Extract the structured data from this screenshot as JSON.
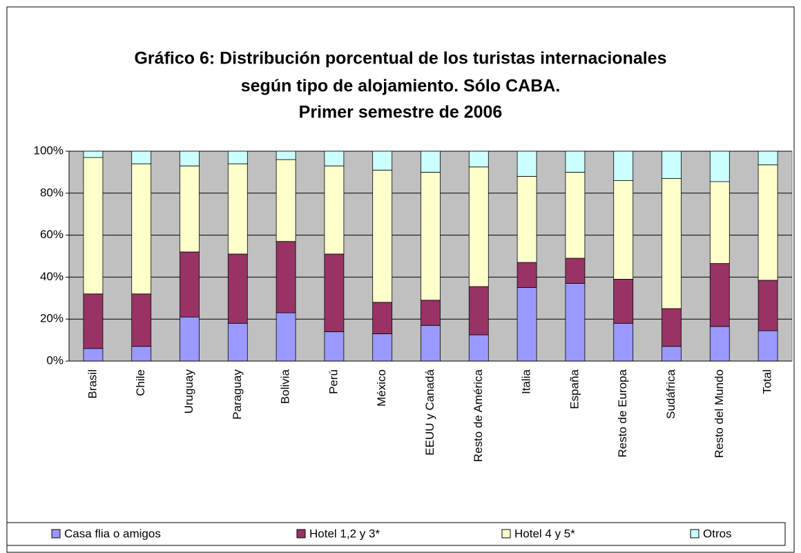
{
  "chart_data": {
    "type": "stacked_bar",
    "title": [
      "Gráfico 6: Distribución porcentual de los turistas internacionales",
      "según tipo de alojamiento. Sólo CABA.",
      "Primer semestre de 2006"
    ],
    "categories": [
      "Brasil",
      "Chile",
      "Uruguay",
      "Paraguay",
      "Bolivia",
      "Perú",
      "México",
      "EEUU y Canadá",
      "Resto de América",
      "Italia",
      "España",
      "Resto de Europa",
      "Sudáfrica",
      "Resto del Mundo",
      "Total"
    ],
    "series": [
      {
        "name": "Casa flia o amigos",
        "color": "#9999ff",
        "values": [
          6,
          7,
          21,
          18,
          23,
          14,
          13,
          17,
          12.5,
          35,
          37,
          18,
          7,
          16.5,
          14.5
        ]
      },
      {
        "name": "Hotel 1,2 y 3*",
        "color": "#993366",
        "values": [
          26,
          25,
          31,
          33,
          34,
          37,
          15,
          12,
          23,
          12,
          12,
          21,
          18,
          30,
          24
        ]
      },
      {
        "name": "Hotel 4 y 5*",
        "color": "#ffffcc",
        "values": [
          65,
          62,
          41,
          43,
          39,
          42,
          63,
          61,
          57,
          41,
          41,
          47,
          62,
          39,
          55
        ]
      },
      {
        "name": "Otros",
        "color": "#ccffff",
        "values": [
          3,
          6,
          7,
          6,
          4,
          7,
          9,
          10,
          7.5,
          12,
          10,
          14,
          13,
          14.5,
          6.5
        ]
      }
    ],
    "ylim": [
      0,
      100
    ],
    "yticks": [
      {
        "value": 0,
        "label": "0%"
      },
      {
        "value": 20,
        "label": "20%"
      },
      {
        "value": 40,
        "label": "40%"
      },
      {
        "value": 60,
        "label": "60%"
      },
      {
        "value": 80,
        "label": "80%"
      },
      {
        "value": 100,
        "label": "100%"
      }
    ],
    "grid": true,
    "plot_background": "#c0c0c0",
    "legend": "bottom"
  }
}
